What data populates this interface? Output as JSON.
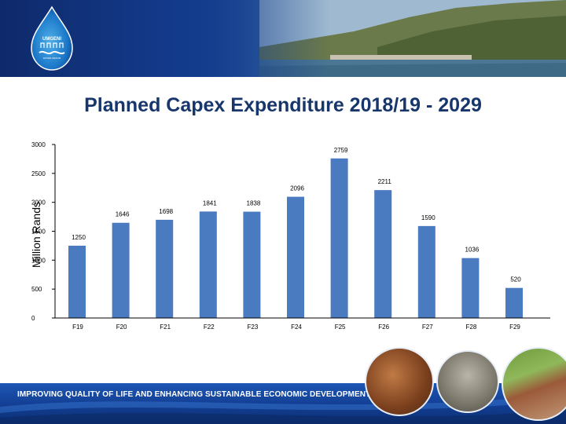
{
  "branding": {
    "logo_text": "UMGENI",
    "logo_subtext": "WATER AMANZI"
  },
  "footer": {
    "tagline": "IMPROVING QUALITY OF LIFE  AND ENHANCING SUSTAINABLE ECONOMIC DEVELOPMENT"
  },
  "colors": {
    "bar": "#4a7ac0",
    "title": "#17366b",
    "header": "#0f2a6b",
    "footer": "#123e92"
  },
  "chart_data": {
    "type": "bar",
    "title": "Planned Capex Expenditure 2018/19 - 2029",
    "xlabel": "",
    "ylabel": "Million Rands",
    "categories": [
      "F19",
      "F20",
      "F21",
      "F22",
      "F23",
      "F24",
      "F25",
      "F26",
      "F27",
      "F28",
      "F29"
    ],
    "values": [
      1250,
      1646,
      1698,
      1841,
      1838,
      2096,
      2759,
      2211,
      1590,
      1036,
      520
    ],
    "value_labels": [
      "1250",
      "1646",
      "1698",
      "1841",
      "1838",
      "2096",
      "2759",
      "2211",
      "1590",
      "1036",
      "520"
    ],
    "ylim": [
      0,
      3000
    ],
    "yticks": [
      "0",
      "500",
      "1000",
      "1500",
      "2000",
      "2500",
      "3000"
    ],
    "grid": false,
    "legend": "none"
  }
}
